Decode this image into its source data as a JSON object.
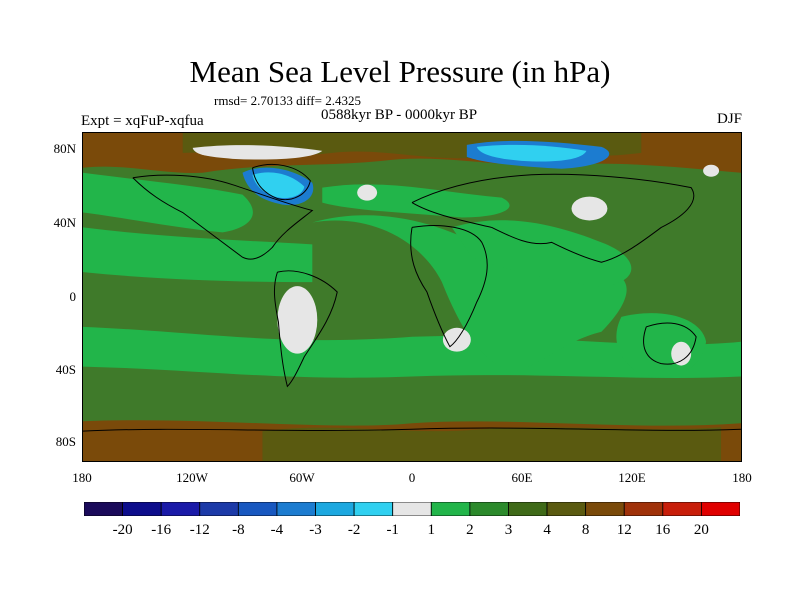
{
  "title": "Mean Sea Level Pressure (in hPa)",
  "stats": "rmsd= 2.70133 diff= 2.4325",
  "period": "0588kyr BP - 0000kyr BP",
  "experiment": "Expt = xqFuP-xqfua",
  "season": "DJF",
  "lat_labels": [
    "80N",
    "40N",
    "0",
    "40S",
    "80S"
  ],
  "lon_labels": [
    "180",
    "120W",
    "60W",
    "0",
    "60E",
    "120E",
    "180"
  ],
  "colorbar": {
    "labels": [
      "-20",
      "-16",
      "-12",
      "-8",
      "-4",
      "-3",
      "-2",
      "-1",
      "1",
      "2",
      "3",
      "4",
      "8",
      "12",
      "16",
      "20"
    ],
    "colors": [
      "#1a0a5a",
      "#0d0d8c",
      "#1a1aa8",
      "#1c3aa8",
      "#1858c0",
      "#1c7cd0",
      "#1ca8e0",
      "#30d0f0",
      "#e6e6e6",
      "#22b54a",
      "#2c8a2c",
      "#3f6a18",
      "#5a5a10",
      "#7a4a0a",
      "#a0320a",
      "#c81e0a",
      "#e00000"
    ]
  },
  "palette": {
    "ocean_green": "#3f7a2a",
    "band_green": "#22b54a",
    "land_dark": "#3f6a18",
    "brown": "#7a4a0a",
    "blue": "#1ca8e0",
    "white": "#e6e6e6"
  }
}
